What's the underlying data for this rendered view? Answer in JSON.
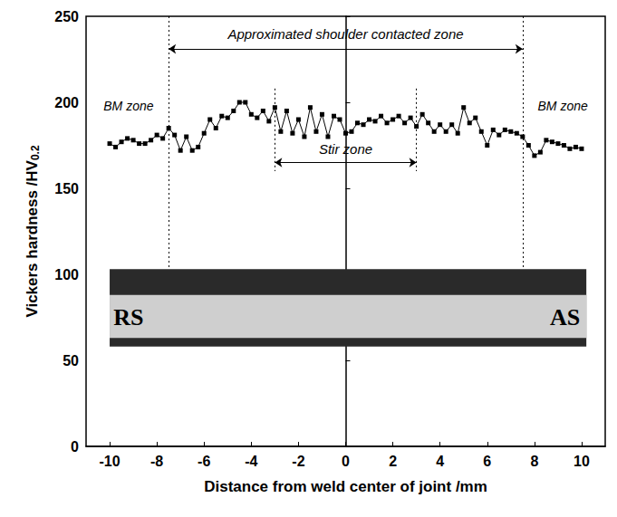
{
  "chart_data": {
    "type": "line",
    "xlabel": "Distance from weld center of joint /mm",
    "ylabel": "Vickers hardness /HV0.2",
    "x": [
      -10,
      -9.75,
      -9.5,
      -9.25,
      -9,
      -8.75,
      -8.5,
      -8.25,
      -8,
      -7.75,
      -7.5,
      -7.25,
      -7,
      -6.75,
      -6.5,
      -6.25,
      -6,
      -5.75,
      -5.5,
      -5.25,
      -5,
      -4.75,
      -4.5,
      -4.25,
      -4,
      -3.75,
      -3.5,
      -3.25,
      -3,
      -2.75,
      -2.5,
      -2.25,
      -2,
      -1.75,
      -1.5,
      -1.25,
      -1,
      -0.75,
      -0.5,
      -0.25,
      0,
      0.25,
      0.5,
      0.75,
      1,
      1.25,
      1.5,
      1.75,
      2,
      2.25,
      2.5,
      2.75,
      3,
      3.25,
      3.5,
      3.75,
      4,
      4.25,
      4.5,
      4.75,
      5,
      5.25,
      5.5,
      5.75,
      6,
      6.25,
      6.5,
      6.75,
      7,
      7.25,
      7.5,
      7.75,
      8,
      8.25,
      8.5,
      8.75,
      9,
      9.25,
      9.5,
      9.75,
      10
    ],
    "values": [
      176,
      174,
      177,
      179,
      178,
      176,
      176,
      178,
      181,
      179,
      185,
      181,
      172,
      180,
      172,
      174,
      182,
      190,
      185,
      192,
      191,
      195,
      200,
      200,
      193,
      191,
      195,
      189,
      197,
      183,
      195,
      182,
      190,
      180,
      197,
      183,
      193,
      180,
      192,
      190,
      182,
      183,
      188,
      187,
      190,
      189,
      192,
      188,
      190,
      192,
      188,
      191,
      186,
      193,
      188,
      183,
      187,
      183,
      187,
      182,
      197,
      188,
      191,
      183,
      175,
      184,
      181,
      184,
      183,
      182,
      180,
      175,
      169,
      171,
      178,
      177,
      176,
      175,
      173,
      174,
      173
    ],
    "color": "#000000",
    "marker": "square",
    "xlim": [
      -11,
      11
    ],
    "xticks": [
      -10,
      -8,
      -6,
      -4,
      -2,
      0,
      2,
      4,
      6,
      8,
      10
    ],
    "ylim": [
      0,
      250
    ],
    "yticks": [
      0,
      50,
      100,
      150,
      200,
      250
    ],
    "grid": false,
    "zones": [
      {
        "label": "Approximated shoulder contacted zone",
        "range": [
          -7.5,
          7.5
        ]
      },
      {
        "label": "Stir zone",
        "range": [
          -3,
          3
        ]
      }
    ],
    "side_labels": [
      "BM zone",
      "BM zone"
    ],
    "inset_labels": [
      "RS",
      "AS"
    ]
  }
}
